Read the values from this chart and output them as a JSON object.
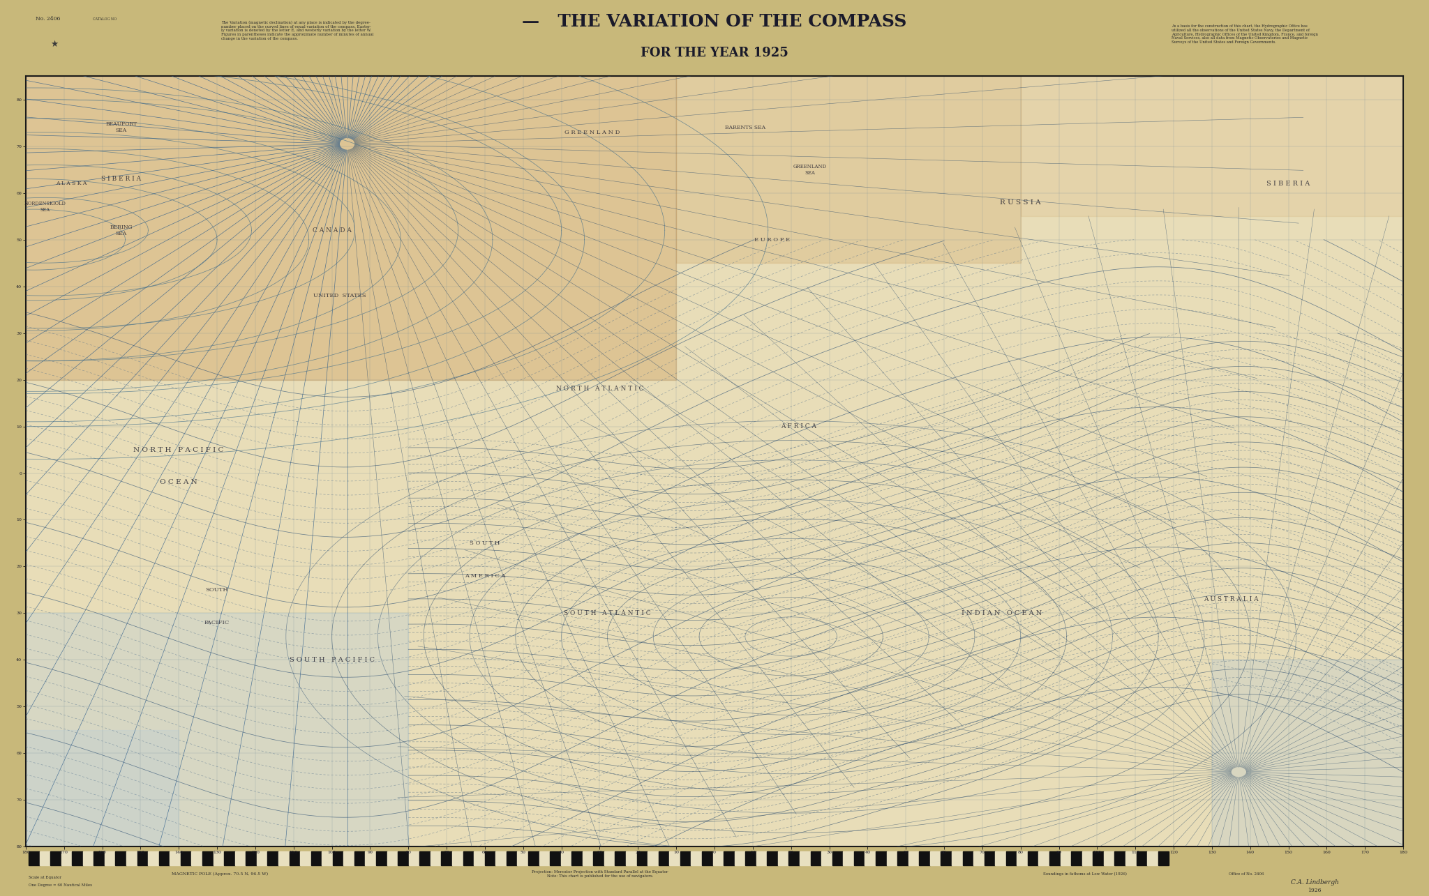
{
  "title_main": "THE VARIATION OF THE COMPASS",
  "title_sub": "FOR THE YEAR 1925",
  "title_dash": "—",
  "fig_bg": "#c8b87a",
  "map_bg": "#e8ddb8",
  "orange_stain": "#c8904a",
  "blue_tint_sw": "#b8ccd8",
  "blue_tint_se": "#b0c5d5",
  "line_color": "#2a4a6b",
  "line_color_solid": "#3a5a7a",
  "line_color_dashed": "#4a6a8a",
  "coast_color": "#4a3a28",
  "grid_color": "#6a8a9a",
  "text_color": "#1a1a2a",
  "border_color": "#1a1a1a",
  "header_bg": "#d8c890",
  "footer_bg": "#d0c080",
  "left_bg": "#c0a848",
  "right_bg": "#d8cc98",
  "figsize": [
    20.48,
    12.85
  ],
  "dpi": 100,
  "catalog_no": "No. 2406",
  "year": "1926"
}
